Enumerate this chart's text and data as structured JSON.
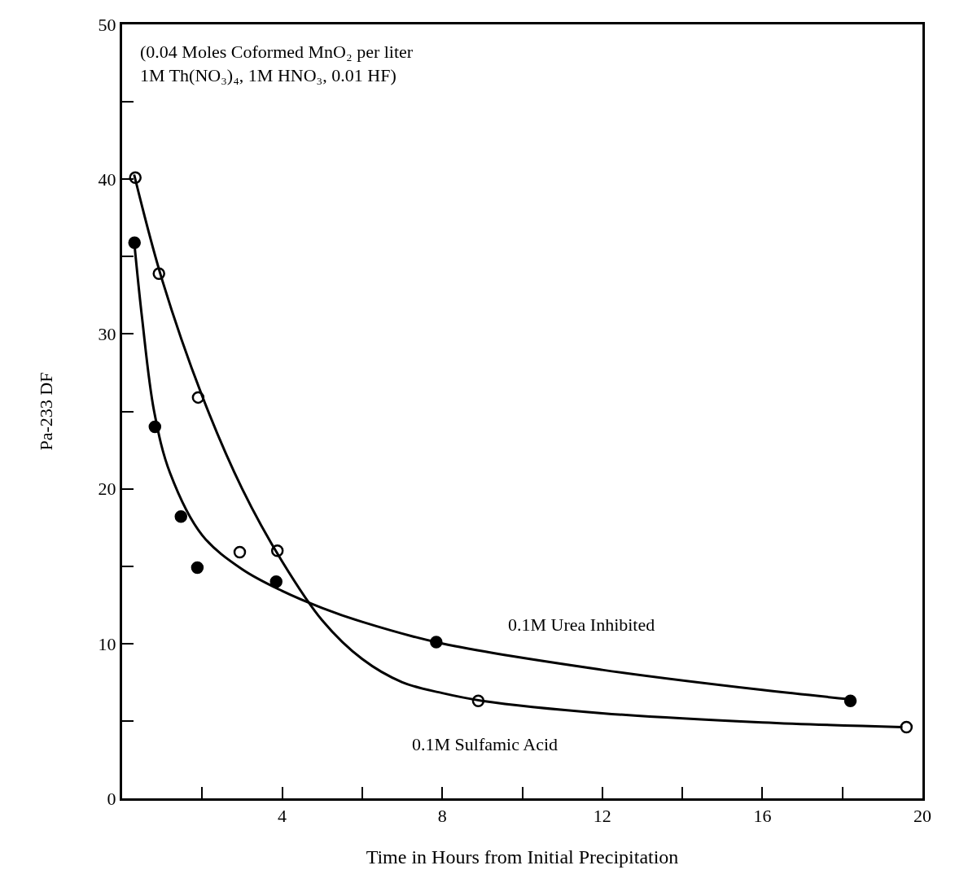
{
  "chart_data": {
    "type": "scatter",
    "xlabel": "Time in Hours from Initial Precipitation",
    "ylabel": "Pa-233 DF",
    "xlim": [
      0,
      20
    ],
    "ylim": [
      0,
      50
    ],
    "xticks": [
      4,
      8,
      12,
      16,
      20
    ],
    "yticks": [
      0,
      10,
      20,
      30,
      40,
      50
    ],
    "series": [
      {
        "color": "#000000",
        "marker": "circle-open",
        "x": [
          0.33,
          0.92,
          1.9,
          2.94,
          3.88,
          8.9,
          19.6
        ],
        "values": [
          40.1,
          33.9,
          25.9,
          15.9,
          16.0,
          6.3,
          4.6
        ]
      },
      {
        "color": "#000000",
        "marker": "circle",
        "x": [
          0.31,
          0.82,
          1.47,
          1.88,
          3.85,
          7.85,
          18.2
        ],
        "values": [
          35.9,
          24.0,
          18.2,
          14.9,
          14.0,
          10.1,
          6.3
        ]
      },
      {
        "type": "line",
        "color": "#000000",
        "x": [
          0.3,
          1,
          2,
          3,
          4,
          5,
          6,
          7,
          8,
          9,
          12,
          16,
          19.5
        ],
        "values": [
          40.3,
          33.5,
          26,
          20,
          15.3,
          11.5,
          9,
          7.5,
          6.8,
          6.3,
          5.5,
          4.9,
          4.6
        ]
      },
      {
        "type": "line",
        "color": "#000000",
        "x": [
          0.3,
          0.5,
          0.8,
          1.2,
          2,
          3,
          4,
          5,
          6,
          8,
          12,
          16,
          18.2
        ],
        "values": [
          36,
          31,
          25,
          21,
          17,
          14.8,
          13.4,
          12.3,
          11.4,
          10,
          8.3,
          7,
          6.4
        ]
      }
    ],
    "annotations": [
      "(0.04 Moles Coformed MnO₂ per liter\n1M Th(NO₃)₄, 1M HNO₃, 0.01 HF)",
      "0.1M Urea Inhibited",
      "0.1M Sulfamic Acid"
    ]
  }
}
